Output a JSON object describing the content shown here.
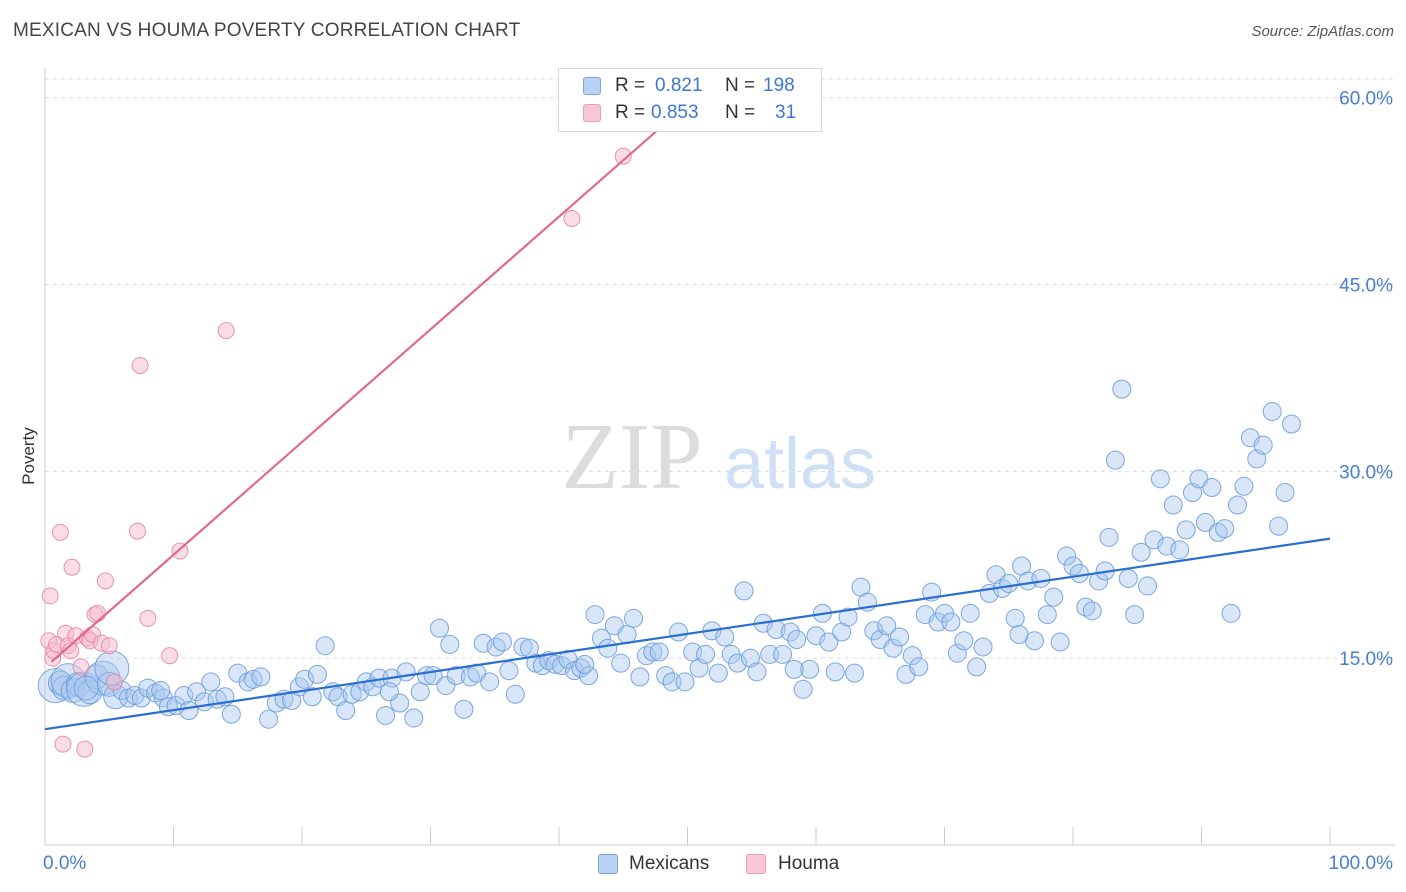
{
  "title": "MEXICAN VS HOUMA POVERTY CORRELATION CHART",
  "source": "Source: ZipAtlas.com",
  "watermark": {
    "zip": "ZIP",
    "atlas": "atlas"
  },
  "legend": {
    "rows": [
      {
        "r_label": "R =",
        "r_value": "0.821",
        "n_label": "N =",
        "n_value": "198"
      },
      {
        "r_label": "R =",
        "r_value": "0.853",
        "n_label": "N =",
        "n_value": "31"
      }
    ]
  },
  "bottom_legend": {
    "mexicans": "Mexicans",
    "houma": "Houma"
  },
  "colors": {
    "mexicans_fill": "#a9c8f0",
    "mexicans_stroke": "#6f9fdc",
    "mexicans_line": "#2a6fd0",
    "houma_fill": "#f6b9cb",
    "houma_stroke": "#e58aa6",
    "houma_line": "#e06a8e",
    "tick_label": "#4a7fd0"
  },
  "chart_data": {
    "type": "scatter",
    "title": "MEXICAN VS HOUMA POVERTY CORRELATION CHART",
    "xlabel": "",
    "ylabel": "Poverty",
    "xlim": [
      0,
      100
    ],
    "ylim": [
      0,
      61.5
    ],
    "x_tick_labels": [
      "0.0%",
      "100.0%"
    ],
    "y_ticks": [
      15,
      30,
      45,
      60
    ],
    "y_tick_labels": [
      "15.0%",
      "30.0%",
      "45.0%",
      "60.0%"
    ],
    "grid": "horizontal dashed",
    "series": [
      {
        "name": "Mexicans",
        "R": 0.821,
        "N": 198,
        "trend": {
          "x": [
            0,
            100
          ],
          "y": [
            9.3,
            24.6
          ]
        },
        "points": [
          [
            0.8,
            12.8
          ],
          [
            1.2,
            13.0
          ],
          [
            1.5,
            12.6
          ],
          [
            1.8,
            13.2
          ],
          [
            2.2,
            12.4
          ],
          [
            2.6,
            12.9
          ],
          [
            3.0,
            12.5
          ],
          [
            3.5,
            12.3
          ],
          [
            4.0,
            13.5
          ],
          [
            4.5,
            13.4
          ],
          [
            5.0,
            12.9
          ],
          [
            5.5,
            11.9
          ],
          [
            6.0,
            12.4
          ],
          [
            6.5,
            11.8
          ],
          [
            7.0,
            12.0
          ],
          [
            7.5,
            11.8
          ],
          [
            8.0,
            12.6
          ],
          [
            8.6,
            12.2
          ],
          [
            9.2,
            11.8
          ],
          [
            9.6,
            11.1
          ],
          [
            10.2,
            11.2
          ],
          [
            10.8,
            12.0
          ],
          [
            11.2,
            10.8
          ],
          [
            11.8,
            12.3
          ],
          [
            12.4,
            11.5
          ],
          [
            12.9,
            13.1
          ],
          [
            13.4,
            11.7
          ],
          [
            14.0,
            11.9
          ],
          [
            14.5,
            10.5
          ],
          [
            15.0,
            13.8
          ],
          [
            15.8,
            13.1
          ],
          [
            16.2,
            13.3
          ],
          [
            16.8,
            13.5
          ],
          [
            17.4,
            10.1
          ],
          [
            18.0,
            11.4
          ],
          [
            18.6,
            11.7
          ],
          [
            19.2,
            11.6
          ],
          [
            19.8,
            12.7
          ],
          [
            20.2,
            13.3
          ],
          [
            20.8,
            11.9
          ],
          [
            21.2,
            13.7
          ],
          [
            21.8,
            16.0
          ],
          [
            22.4,
            12.3
          ],
          [
            22.8,
            11.9
          ],
          [
            23.4,
            10.8
          ],
          [
            23.9,
            12.1
          ],
          [
            24.5,
            12.3
          ],
          [
            25.0,
            13.1
          ],
          [
            25.5,
            12.7
          ],
          [
            26.0,
            13.4
          ],
          [
            26.5,
            10.4
          ],
          [
            27.0,
            13.4
          ],
          [
            27.6,
            11.4
          ],
          [
            28.1,
            13.9
          ],
          [
            28.7,
            10.2
          ],
          [
            29.2,
            12.3
          ],
          [
            29.7,
            13.6
          ],
          [
            30.2,
            13.6
          ],
          [
            30.7,
            17.4
          ],
          [
            31.2,
            12.8
          ],
          [
            31.5,
            16.1
          ],
          [
            32.0,
            13.6
          ],
          [
            32.6,
            10.9
          ],
          [
            33.1,
            13.5
          ],
          [
            33.6,
            13.8
          ],
          [
            34.1,
            16.2
          ],
          [
            34.6,
            13.1
          ],
          [
            35.1,
            15.9
          ],
          [
            35.6,
            16.3
          ],
          [
            36.1,
            14.0
          ],
          [
            36.6,
            12.1
          ],
          [
            37.2,
            15.9
          ],
          [
            37.7,
            15.8
          ],
          [
            38.2,
            14.6
          ],
          [
            38.7,
            14.4
          ],
          [
            39.2,
            14.8
          ],
          [
            39.7,
            14.5
          ],
          [
            40.2,
            14.4
          ],
          [
            40.7,
            14.9
          ],
          [
            41.2,
            14.0
          ],
          [
            41.7,
            14.2
          ],
          [
            42.3,
            13.6
          ],
          [
            42.8,
            18.5
          ],
          [
            43.3,
            16.6
          ],
          [
            43.8,
            15.8
          ],
          [
            44.3,
            17.6
          ],
          [
            44.8,
            14.6
          ],
          [
            45.3,
            16.9
          ],
          [
            45.8,
            18.2
          ],
          [
            46.3,
            13.5
          ],
          [
            46.8,
            15.2
          ],
          [
            47.3,
            15.5
          ],
          [
            47.8,
            15.5
          ],
          [
            48.3,
            13.6
          ],
          [
            48.8,
            13.1
          ],
          [
            49.3,
            17.1
          ],
          [
            49.8,
            13.1
          ],
          [
            50.4,
            15.5
          ],
          [
            50.9,
            14.2
          ],
          [
            51.4,
            15.3
          ],
          [
            51.9,
            17.2
          ],
          [
            52.4,
            13.8
          ],
          [
            52.9,
            16.7
          ],
          [
            53.4,
            15.3
          ],
          [
            53.9,
            14.6
          ],
          [
            54.4,
            20.4
          ],
          [
            54.9,
            15.0
          ],
          [
            55.4,
            13.9
          ],
          [
            55.9,
            17.8
          ],
          [
            56.4,
            15.3
          ],
          [
            56.9,
            17.3
          ],
          [
            57.4,
            15.3
          ],
          [
            58.0,
            17.1
          ],
          [
            58.5,
            16.5
          ],
          [
            59.0,
            12.5
          ],
          [
            59.5,
            14.1
          ],
          [
            60.0,
            16.8
          ],
          [
            60.5,
            18.6
          ],
          [
            61.0,
            16.3
          ],
          [
            61.5,
            13.9
          ],
          [
            62.0,
            17.1
          ],
          [
            62.5,
            18.3
          ],
          [
            63.0,
            13.8
          ],
          [
            63.5,
            20.7
          ],
          [
            64.0,
            19.5
          ],
          [
            64.5,
            17.2
          ],
          [
            65.0,
            16.5
          ],
          [
            65.5,
            17.6
          ],
          [
            66.0,
            15.8
          ],
          [
            66.5,
            16.7
          ],
          [
            67.0,
            13.7
          ],
          [
            67.5,
            15.2
          ],
          [
            68.0,
            14.3
          ],
          [
            68.5,
            18.5
          ],
          [
            69.0,
            20.3
          ],
          [
            69.5,
            17.9
          ],
          [
            70.0,
            18.6
          ],
          [
            70.5,
            17.9
          ],
          [
            71.0,
            15.4
          ],
          [
            71.5,
            16.4
          ],
          [
            72.0,
            18.6
          ],
          [
            72.5,
            14.3
          ],
          [
            73.0,
            15.9
          ],
          [
            73.5,
            20.2
          ],
          [
            74.0,
            21.7
          ],
          [
            74.5,
            20.6
          ],
          [
            75.0,
            21.0
          ],
          [
            75.5,
            18.2
          ],
          [
            76.0,
            22.4
          ],
          [
            76.5,
            21.2
          ],
          [
            77.0,
            16.4
          ],
          [
            77.5,
            21.4
          ],
          [
            78.0,
            18.5
          ],
          [
            78.5,
            19.9
          ],
          [
            79.0,
            16.3
          ],
          [
            79.5,
            23.2
          ],
          [
            80.0,
            22.4
          ],
          [
            80.5,
            21.8
          ],
          [
            81.0,
            19.1
          ],
          [
            81.5,
            18.8
          ],
          [
            82.0,
            21.2
          ],
          [
            82.5,
            22.0
          ],
          [
            82.8,
            24.7
          ],
          [
            83.3,
            30.9
          ],
          [
            83.8,
            36.6
          ],
          [
            84.3,
            21.4
          ],
          [
            84.8,
            18.5
          ],
          [
            85.3,
            23.5
          ],
          [
            85.8,
            20.8
          ],
          [
            86.3,
            24.5
          ],
          [
            86.8,
            29.4
          ],
          [
            87.3,
            24.0
          ],
          [
            87.8,
            27.3
          ],
          [
            88.3,
            23.7
          ],
          [
            88.8,
            25.3
          ],
          [
            89.3,
            28.3
          ],
          [
            89.8,
            29.4
          ],
          [
            90.3,
            25.9
          ],
          [
            90.8,
            28.7
          ],
          [
            91.3,
            25.1
          ],
          [
            91.8,
            25.4
          ],
          [
            92.3,
            18.6
          ],
          [
            92.8,
            27.3
          ],
          [
            93.3,
            28.8
          ],
          [
            93.8,
            32.7
          ],
          [
            94.3,
            31.0
          ],
          [
            94.8,
            32.1
          ],
          [
            95.5,
            34.8
          ],
          [
            96.0,
            25.6
          ],
          [
            96.5,
            28.3
          ],
          [
            97.0,
            33.8
          ],
          [
            3.2,
            12.6
          ],
          [
            5.2,
            14.2
          ],
          [
            9.0,
            12.4
          ],
          [
            26.8,
            12.3
          ],
          [
            42.0,
            14.5
          ],
          [
            58.3,
            14.1
          ],
          [
            75.8,
            16.9
          ]
        ]
      },
      {
        "name": "Houma",
        "R": 0.853,
        "N": 31,
        "trend": {
          "x": [
            0.5,
            50.0
          ],
          "y": [
            14.7,
            59.5
          ]
        },
        "points": [
          [
            0.3,
            16.4
          ],
          [
            0.4,
            20.0
          ],
          [
            0.6,
            15.0
          ],
          [
            0.7,
            15.6
          ],
          [
            0.9,
            16.1
          ],
          [
            1.2,
            25.1
          ],
          [
            1.4,
            8.1
          ],
          [
            1.6,
            17.0
          ],
          [
            1.8,
            16.0
          ],
          [
            2.1,
            22.3
          ],
          [
            2.4,
            16.8
          ],
          [
            2.8,
            14.3
          ],
          [
            3.1,
            7.7
          ],
          [
            3.3,
            16.6
          ],
          [
            3.5,
            16.4
          ],
          [
            3.7,
            16.9
          ],
          [
            3.9,
            18.5
          ],
          [
            4.1,
            18.6
          ],
          [
            4.4,
            16.2
          ],
          [
            4.7,
            21.2
          ],
          [
            5.0,
            16.0
          ],
          [
            5.4,
            13.1
          ],
          [
            7.2,
            25.2
          ],
          [
            7.4,
            38.5
          ],
          [
            8.0,
            18.2
          ],
          [
            9.7,
            15.2
          ],
          [
            10.5,
            23.6
          ],
          [
            14.1,
            41.3
          ],
          [
            41.0,
            50.3
          ],
          [
            45.0,
            55.3
          ],
          [
            2.0,
            15.6
          ]
        ]
      }
    ]
  }
}
